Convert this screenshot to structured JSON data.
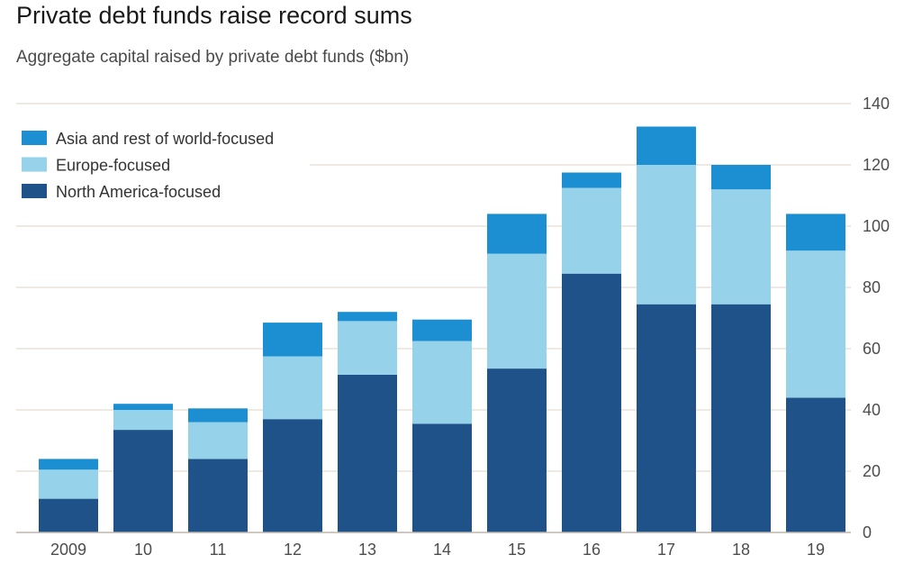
{
  "header": {
    "title": "Private debt funds raise record sums",
    "subtitle": "Aggregate capital raised by private debt funds ($bn)"
  },
  "chart_data": {
    "type": "bar",
    "stacked": true,
    "categories": [
      "2009",
      "10",
      "11",
      "12",
      "13",
      "14",
      "15",
      "16",
      "17",
      "18",
      "19"
    ],
    "series": [
      {
        "name": "North America-focused",
        "color": "#1f5289",
        "values": [
          11,
          33.5,
          24,
          37,
          51.5,
          35.5,
          53.5,
          84.5,
          74.5,
          74.5,
          44
        ]
      },
      {
        "name": "Europe-focused",
        "color": "#96d2ea",
        "values": [
          9.5,
          6.5,
          12,
          20.5,
          17.5,
          27,
          37.5,
          28,
          45.5,
          37.5,
          48
        ]
      },
      {
        "name": "Asia and rest of world-focused",
        "color": "#1c8fd2",
        "values": [
          3.5,
          2,
          4.5,
          11,
          3,
          7,
          13,
          5,
          12.5,
          8,
          12
        ]
      }
    ],
    "legend": {
      "position": "top-left",
      "order": [
        "Asia and rest of world-focused",
        "Europe-focused",
        "North America-focused"
      ]
    },
    "y_axis": {
      "position": "right",
      "ylim": [
        0,
        140
      ],
      "ticks": [
        "0",
        "20",
        "40",
        "60",
        "80",
        "100",
        "120",
        "140"
      ]
    },
    "grid": true,
    "gridline_color": "#e9e2da",
    "xlabel": "",
    "ylabel": ""
  }
}
